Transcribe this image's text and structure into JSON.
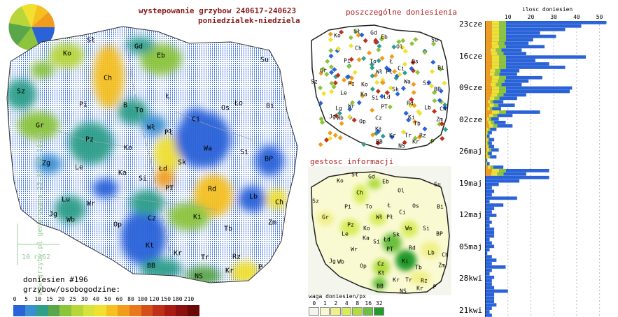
{
  "header": {
    "title_line1": "wystepowanie grzybow 240617-240623",
    "title_line2": "poniedzialek-niedziela"
  },
  "main_map": {
    "report_count_label": "doniesien #196",
    "scale_title": "grzybow/osobogodzine:",
    "scale_values": [
      "0",
      "5",
      "10",
      "15",
      "20",
      "25",
      "30",
      "40",
      "50",
      "60",
      "80",
      "100",
      "120",
      "150",
      "180",
      "210"
    ],
    "scale_colors": [
      "#2a62d8",
      "#3a8fd0",
      "#2f9e8a",
      "#5aa64a",
      "#8cc43c",
      "#b8d63a",
      "#d8e23c",
      "#f0e030",
      "#f5c020",
      "#f29c1c",
      "#e8781c",
      "#d4501a",
      "#c03018",
      "#a81c14",
      "#8c1010",
      "#6a0808"
    ],
    "distance_label": "10",
    "radius_label": "r=62",
    "side_caption": "www.grzyby.pl generowane 25.01.05 19:01",
    "cities": [
      {
        "name": "Sł",
        "x": 130,
        "y": 58
      },
      {
        "name": "Gd",
        "x": 198,
        "y": 67
      },
      {
        "name": "Ko",
        "x": 96,
        "y": 77
      },
      {
        "name": "Eb",
        "x": 230,
        "y": 80
      },
      {
        "name": "Su",
        "x": 378,
        "y": 86
      },
      {
        "name": "Ch",
        "x": 154,
        "y": 112
      },
      {
        "name": "Sz",
        "x": 30,
        "y": 131
      },
      {
        "name": "Pi",
        "x": 119,
        "y": 150
      },
      {
        "name": "B",
        "x": 179,
        "y": 151
      },
      {
        "name": "Ł",
        "x": 240,
        "y": 138
      },
      {
        "name": "Ło",
        "x": 341,
        "y": 148
      },
      {
        "name": "Bi",
        "x": 386,
        "y": 152
      },
      {
        "name": "Os",
        "x": 322,
        "y": 155
      },
      {
        "name": "To",
        "x": 199,
        "y": 158
      },
      {
        "name": "Ci",
        "x": 280,
        "y": 171
      },
      {
        "name": "Gr",
        "x": 57,
        "y": 180
      },
      {
        "name": "Wł",
        "x": 216,
        "y": 183
      },
      {
        "name": "Pł",
        "x": 241,
        "y": 190
      },
      {
        "name": "Pz",
        "x": 128,
        "y": 200
      },
      {
        "name": "Ko",
        "x": 183,
        "y": 212
      },
      {
        "name": "Wa",
        "x": 297,
        "y": 213
      },
      {
        "name": "Si",
        "x": 349,
        "y": 218
      },
      {
        "name": "Zg",
        "x": 66,
        "y": 234
      },
      {
        "name": "Le",
        "x": 113,
        "y": 240
      },
      {
        "name": "Sk",
        "x": 260,
        "y": 233
      },
      {
        "name": "BP",
        "x": 384,
        "y": 228
      },
      {
        "name": "Ka",
        "x": 175,
        "y": 248
      },
      {
        "name": "Łd",
        "x": 233,
        "y": 242
      },
      {
        "name": "Si",
        "x": 204,
        "y": 256
      },
      {
        "name": "PT",
        "x": 242,
        "y": 270
      },
      {
        "name": "Rd",
        "x": 303,
        "y": 271
      },
      {
        "name": "Lb",
        "x": 362,
        "y": 282
      },
      {
        "name": "Lu",
        "x": 94,
        "y": 286
      },
      {
        "name": "Wr",
        "x": 130,
        "y": 292
      },
      {
        "name": "Ch",
        "x": 399,
        "y": 290
      },
      {
        "name": "Jg",
        "x": 76,
        "y": 307
      },
      {
        "name": "Wb",
        "x": 101,
        "y": 315
      },
      {
        "name": "Ki",
        "x": 282,
        "y": 311
      },
      {
        "name": "Cz",
        "x": 217,
        "y": 313
      },
      {
        "name": "Zm",
        "x": 389,
        "y": 319
      },
      {
        "name": "Op",
        "x": 168,
        "y": 322
      },
      {
        "name": "Tb",
        "x": 326,
        "y": 328
      },
      {
        "name": "Kt",
        "x": 214,
        "y": 352
      },
      {
        "name": "Kr",
        "x": 254,
        "y": 363
      },
      {
        "name": "Tr",
        "x": 293,
        "y": 369
      },
      {
        "name": "Rz",
        "x": 338,
        "y": 368
      },
      {
        "name": "BB",
        "x": 216,
        "y": 381
      },
      {
        "name": "P",
        "x": 372,
        "y": 383
      },
      {
        "name": "Kr",
        "x": 328,
        "y": 388
      },
      {
        "name": "NS",
        "x": 284,
        "y": 396
      }
    ]
  },
  "reports_map": {
    "title": "poszczególne doniesienia",
    "cities": [
      {
        "name": "Sł",
        "x": 510,
        "y": 45
      },
      {
        "name": "Gd",
        "x": 534,
        "y": 47
      },
      {
        "name": "Ko",
        "x": 482,
        "y": 51
      },
      {
        "name": "Eb",
        "x": 549,
        "y": 53
      },
      {
        "name": "Su",
        "x": 621,
        "y": 57
      },
      {
        "name": "Ol",
        "x": 571,
        "y": 67
      },
      {
        "name": "Ch",
        "x": 512,
        "y": 69
      },
      {
        "name": "Pi",
        "x": 496,
        "y": 87
      },
      {
        "name": "To",
        "x": 533,
        "y": 88
      },
      {
        "name": "Os",
        "x": 593,
        "y": 88
      },
      {
        "name": "Ł",
        "x": 559,
        "y": 88
      },
      {
        "name": "Gr",
        "x": 462,
        "y": 101
      },
      {
        "name": "Wł",
        "x": 542,
        "y": 103
      },
      {
        "name": "Pł",
        "x": 556,
        "y": 103
      },
      {
        "name": "Ci",
        "x": 573,
        "y": 98
      },
      {
        "name": "Bi",
        "x": 630,
        "y": 97
      },
      {
        "name": "Pz",
        "x": 502,
        "y": 120
      },
      {
        "name": "Wa",
        "x": 582,
        "y": 117
      },
      {
        "name": "Si",
        "x": 609,
        "y": 119
      },
      {
        "name": "Sz",
        "x": 449,
        "y": 117
      },
      {
        "name": "Ko",
        "x": 521,
        "y": 121
      },
      {
        "name": "Sk",
        "x": 565,
        "y": 128
      },
      {
        "name": "BP",
        "x": 625,
        "y": 128
      },
      {
        "name": "Le",
        "x": 491,
        "y": 133
      },
      {
        "name": "Ka",
        "x": 520,
        "y": 135
      },
      {
        "name": "Si",
        "x": 536,
        "y": 140
      },
      {
        "name": "Ld",
        "x": 553,
        "y": 139
      },
      {
        "name": "Lg",
        "x": 484,
        "y": 155
      },
      {
        "name": "Wr",
        "x": 502,
        "y": 152
      },
      {
        "name": "PT",
        "x": 549,
        "y": 153
      },
      {
        "name": "Rd",
        "x": 586,
        "y": 148
      },
      {
        "name": "Lb",
        "x": 611,
        "y": 154
      },
      {
        "name": "Ch",
        "x": 633,
        "y": 156
      },
      {
        "name": "Jg",
        "x": 475,
        "y": 167
      },
      {
        "name": "Wb",
        "x": 486,
        "y": 169
      },
      {
        "name": "Ki",
        "x": 588,
        "y": 168
      },
      {
        "name": "Cz",
        "x": 541,
        "y": 169
      },
      {
        "name": "Zm",
        "x": 628,
        "y": 171
      },
      {
        "name": "Op",
        "x": 518,
        "y": 174
      },
      {
        "name": "Tb",
        "x": 596,
        "y": 177
      },
      {
        "name": "Kt",
        "x": 541,
        "y": 185
      },
      {
        "name": "Kr",
        "x": 561,
        "y": 194
      },
      {
        "name": "Tr",
        "x": 583,
        "y": 194
      },
      {
        "name": "Rz",
        "x": 604,
        "y": 194
      },
      {
        "name": "BB",
        "x": 542,
        "y": 203
      },
      {
        "name": "NS",
        "x": 574,
        "y": 209
      },
      {
        "name": "Kr",
        "x": 594,
        "y": 203
      },
      {
        "name": "P",
        "x": 618,
        "y": 203
      }
    ]
  },
  "density_map": {
    "title": "gestosc informacji",
    "legend_title": "waga doniesien/px",
    "legend_values": [
      "0",
      "1",
      "2",
      "4",
      "8",
      "16",
      "32"
    ],
    "legend_colors": [
      "#f4f6ee",
      "#fafad2",
      "#f0f08a",
      "#d8ec5c",
      "#b0dc40",
      "#6cc03c",
      "#249a2a"
    ],
    "cities": [
      {
        "name": "Sł",
        "x": 507,
        "y": 250
      },
      {
        "name": "Gd",
        "x": 531,
        "y": 253
      },
      {
        "name": "Ko",
        "x": 486,
        "y": 259
      },
      {
        "name": "Eb",
        "x": 551,
        "y": 260
      },
      {
        "name": "Su",
        "x": 625,
        "y": 264
      },
      {
        "name": "Ch",
        "x": 514,
        "y": 276
      },
      {
        "name": "Ol",
        "x": 573,
        "y": 273
      },
      {
        "name": "Pi",
        "x": 497,
        "y": 296
      },
      {
        "name": "To",
        "x": 527,
        "y": 296
      },
      {
        "name": "Os",
        "x": 594,
        "y": 295
      },
      {
        "name": "Ł",
        "x": 556,
        "y": 294
      },
      {
        "name": "Bi",
        "x": 629,
        "y": 296
      },
      {
        "name": "Gr",
        "x": 465,
        "y": 311
      },
      {
        "name": "Wł",
        "x": 542,
        "y": 311
      },
      {
        "name": "Pł",
        "x": 557,
        "y": 311
      },
      {
        "name": "Ci",
        "x": 575,
        "y": 304
      },
      {
        "name": "Sz",
        "x": 451,
        "y": 288
      },
      {
        "name": "Pz",
        "x": 501,
        "y": 322
      },
      {
        "name": "Wa",
        "x": 584,
        "y": 327
      },
      {
        "name": "Si",
        "x": 609,
        "y": 327
      },
      {
        "name": "Ko",
        "x": 524,
        "y": 327
      },
      {
        "name": "Sk",
        "x": 566,
        "y": 336
      },
      {
        "name": "BP",
        "x": 628,
        "y": 335
      },
      {
        "name": "Le",
        "x": 493,
        "y": 335
      },
      {
        "name": "Ka",
        "x": 523,
        "y": 341
      },
      {
        "name": "Si",
        "x": 538,
        "y": 346
      },
      {
        "name": "Łd",
        "x": 553,
        "y": 343
      },
      {
        "name": "Wr",
        "x": 506,
        "y": 357
      },
      {
        "name": "PT",
        "x": 557,
        "y": 357
      },
      {
        "name": "Rd",
        "x": 589,
        "y": 355
      },
      {
        "name": "Lb",
        "x": 616,
        "y": 362
      },
      {
        "name": "Ch",
        "x": 636,
        "y": 365
      },
      {
        "name": "Jg",
        "x": 475,
        "y": 374
      },
      {
        "name": "Wb",
        "x": 487,
        "y": 375
      },
      {
        "name": "Ki",
        "x": 579,
        "y": 374
      },
      {
        "name": "Op",
        "x": 519,
        "y": 381
      },
      {
        "name": "Cz",
        "x": 544,
        "y": 378
      },
      {
        "name": "Tb",
        "x": 598,
        "y": 383
      },
      {
        "name": "Zm",
        "x": 631,
        "y": 380
      },
      {
        "name": "Kt",
        "x": 545,
        "y": 391
      },
      {
        "name": "Kr",
        "x": 566,
        "y": 401
      },
      {
        "name": "Tr",
        "x": 584,
        "y": 401
      },
      {
        "name": "Rz",
        "x": 606,
        "y": 402
      },
      {
        "name": "BB",
        "x": 543,
        "y": 410
      },
      {
        "name": "NS",
        "x": 576,
        "y": 417
      },
      {
        "name": "Kr",
        "x": 600,
        "y": 413
      },
      {
        "name": "P",
        "x": 621,
        "y": 411
      }
    ]
  },
  "chart_data": {
    "type": "bar",
    "orientation": "horizontal",
    "title": "ilosc doniesien",
    "x_ticks": [
      "10",
      "20",
      "30",
      "40",
      "50"
    ],
    "xlim": [
      0,
      55
    ],
    "date_labels": [
      "23cze",
      "16cze",
      "09cze",
      "02cze",
      "26maj",
      "19maj",
      "12maj",
      "05maj",
      "28kwi",
      "21kwi"
    ],
    "series": [
      {
        "values": [
          53,
          42,
          35,
          24,
          31,
          21,
          19,
          26,
          16,
          18,
          44,
          22,
          28,
          35,
          15,
          14,
          25,
          19,
          16,
          38,
          37,
          18,
          14,
          8,
          13,
          7,
          24,
          12,
          6,
          9,
          12,
          5,
          3,
          2,
          4,
          3,
          4,
          6,
          3,
          5,
          1,
          2,
          8,
          28,
          18,
          28,
          15,
          6,
          3,
          4,
          3,
          14,
          2,
          8,
          4,
          3,
          5,
          2,
          3,
          2,
          4,
          4,
          4,
          2,
          3,
          4,
          2,
          1,
          3,
          5,
          3,
          9,
          3,
          2,
          4,
          3,
          3,
          4,
          10,
          4,
          4,
          4,
          5,
          3,
          2,
          3
        ]
      }
    ],
    "colors": [
      "#2a62d8",
      "#f0e030",
      "#8cc43c",
      "#f29c1c",
      "#c03018"
    ],
    "grid": true
  }
}
